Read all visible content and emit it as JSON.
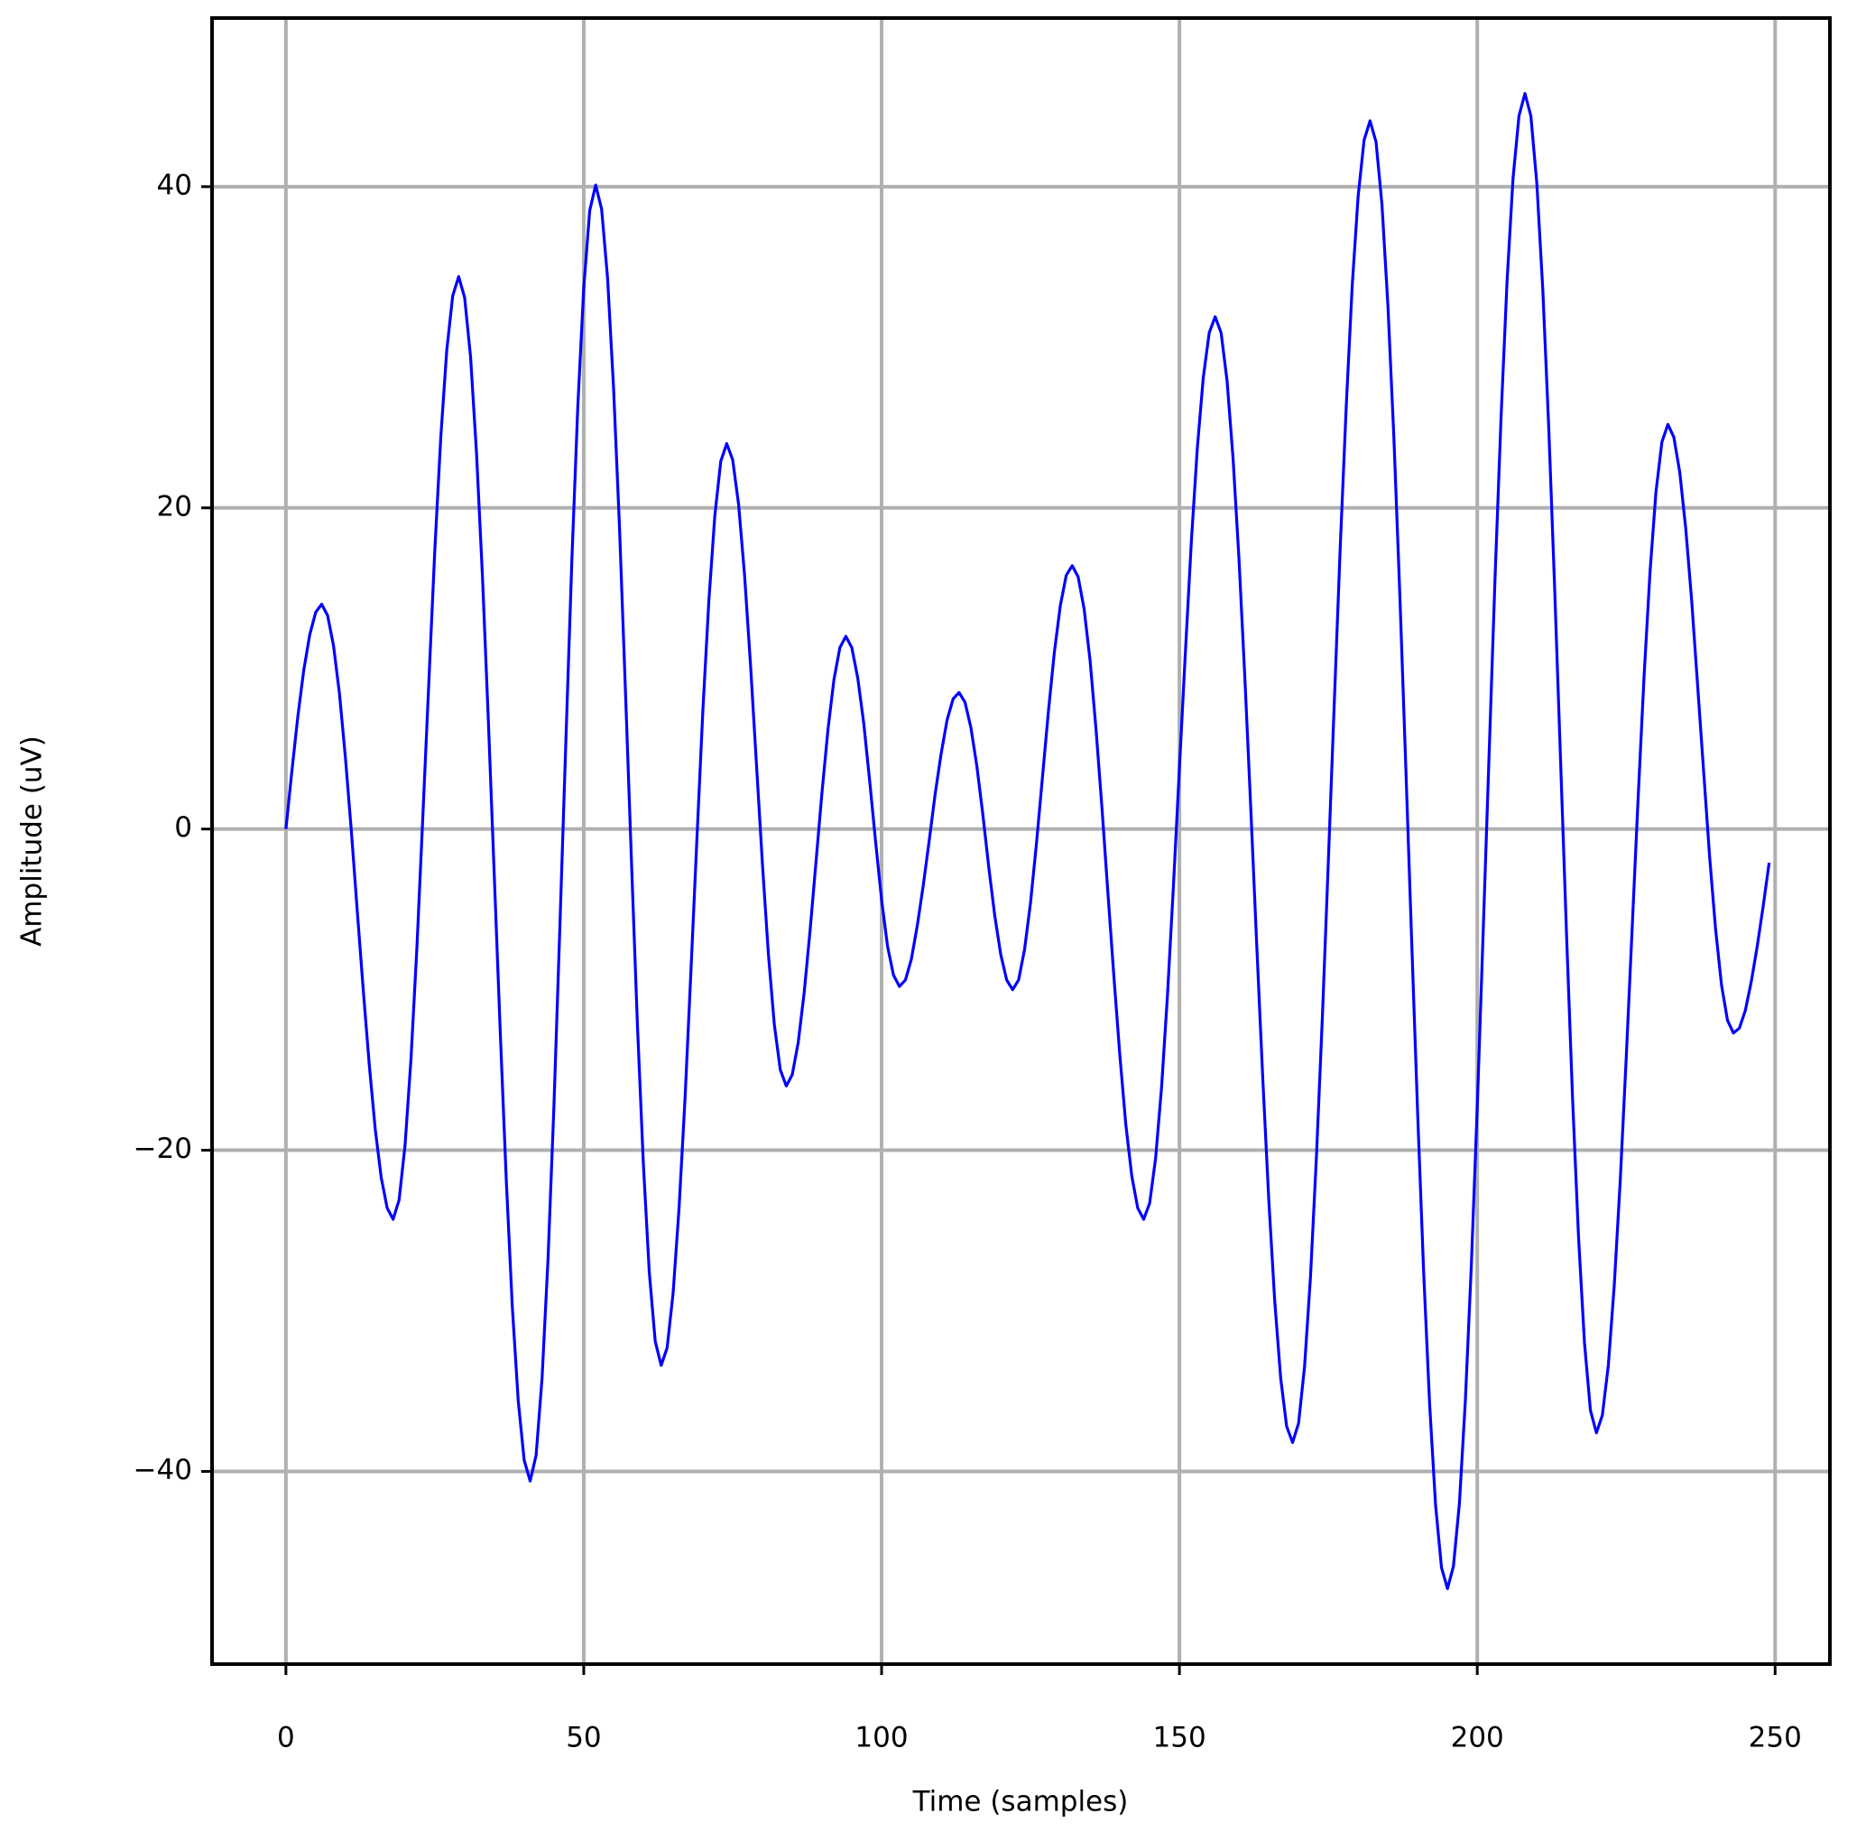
{
  "chart_data": {
    "type": "line",
    "xlabel": "Time (samples)",
    "ylabel": "Amplitude (uV)",
    "x": [
      0,
      1,
      2,
      3,
      4,
      5,
      6,
      7,
      8,
      9,
      10,
      11,
      12,
      13,
      14,
      15,
      16,
      17,
      18,
      19,
      20,
      21,
      22,
      23,
      24,
      25,
      26,
      27,
      28,
      29,
      30,
      31,
      32,
      33,
      34,
      35,
      36,
      37,
      38,
      39,
      40,
      41,
      42,
      43,
      44,
      45,
      46,
      47,
      48,
      49,
      50,
      51,
      52,
      53,
      54,
      55,
      56,
      57,
      58,
      59,
      60,
      61,
      62,
      63,
      64,
      65,
      66,
      67,
      68,
      69,
      70,
      71,
      72,
      73,
      74,
      75,
      76,
      77,
      78,
      79,
      80,
      81,
      82,
      83,
      84,
      85,
      86,
      87,
      88,
      89,
      90,
      91,
      92,
      93,
      94,
      95,
      96,
      97,
      98,
      99,
      100,
      101,
      102,
      103,
      104,
      105,
      106,
      107,
      108,
      109,
      110,
      111,
      112,
      113,
      114,
      115,
      116,
      117,
      118,
      119,
      120,
      121,
      122,
      123,
      124,
      125,
      126,
      127,
      128,
      129,
      130,
      131,
      132,
      133,
      134,
      135,
      136,
      137,
      138,
      139,
      140,
      141,
      142,
      143,
      144,
      145,
      146,
      147,
      148,
      149,
      150,
      151,
      152,
      153,
      154,
      155,
      156,
      157,
      158,
      159,
      160,
      161,
      162,
      163,
      164,
      165,
      166,
      167,
      168,
      169,
      170,
      171,
      172,
      173,
      174,
      175,
      176,
      177,
      178,
      179,
      180,
      181,
      182,
      183,
      184,
      185,
      186,
      187,
      188,
      189,
      190,
      191,
      192,
      193,
      194,
      195,
      196,
      197,
      198,
      199,
      200,
      201,
      202,
      203,
      204,
      205,
      206,
      207,
      208,
      209,
      210,
      211,
      212,
      213,
      214,
      215,
      216,
      217,
      218,
      219,
      220,
      221,
      222,
      223,
      224,
      225,
      226,
      227,
      228,
      229,
      230,
      231,
      232,
      233,
      234,
      235,
      236,
      237,
      238,
      239,
      240,
      241,
      242,
      243,
      244,
      245,
      246,
      247,
      248,
      249
    ],
    "series": [
      {
        "color": "#0000ff",
        "values": [
          0,
          3.6,
          7.0,
          9.9,
          12.1,
          13.5,
          14.0,
          13.3,
          11.4,
          8.4,
          4.4,
          -0.2,
          -5.2,
          -10.1,
          -14.7,
          -18.7,
          -21.7,
          -23.6,
          -24.3,
          -23.1,
          -19.7,
          -14.3,
          -7.3,
          0.9,
          9.2,
          17.4,
          24.4,
          29.8,
          33.2,
          34.4,
          33.1,
          29.4,
          23.4,
          15.7,
          6.6,
          -3.1,
          -12.8,
          -21.9,
          -29.7,
          -35.6,
          -39.3,
          -40.6,
          -39.0,
          -34.2,
          -26.8,
          -17.2,
          -6.0,
          5.5,
          16.7,
          26.3,
          33.7,
          38.5,
          40.1,
          38.6,
          34.3,
          27.5,
          18.8,
          8.6,
          -1.9,
          -12.1,
          -20.8,
          -27.6,
          -31.9,
          -33.4,
          -32.3,
          -28.9,
          -23.6,
          -16.8,
          -8.8,
          -0.6,
          7.4,
          14.2,
          19.5,
          22.9,
          24.0,
          23.0,
          20.2,
          15.8,
          10.2,
          4.0,
          -2.2,
          -7.8,
          -12.2,
          -15.0,
          -16.0,
          -15.3,
          -13.3,
          -10.2,
          -6.3,
          -2.0,
          2.3,
          6.2,
          9.3,
          11.3,
          12.0,
          11.3,
          9.4,
          6.6,
          3.0,
          -0.8,
          -4.4,
          -7.3,
          -9.1,
          -9.8,
          -9.4,
          -8.1,
          -6.0,
          -3.5,
          -0.7,
          2.2,
          4.7,
          6.8,
          8.1,
          8.5,
          7.9,
          6.3,
          3.9,
          0.9,
          -2.4,
          -5.4,
          -7.8,
          -9.4,
          -10.0,
          -9.4,
          -7.5,
          -4.6,
          -0.9,
          3.2,
          7.3,
          11.0,
          13.9,
          15.8,
          16.4,
          15.7,
          13.7,
          10.5,
          6.2,
          1.3,
          -4.0,
          -9.2,
          -14.1,
          -18.4,
          -21.6,
          -23.6,
          -24.3,
          -23.3,
          -20.5,
          -16.1,
          -10.3,
          -3.5,
          3.8,
          11.0,
          17.9,
          23.7,
          28.1,
          30.9,
          31.9,
          30.9,
          27.9,
          23.1,
          16.8,
          9.3,
          1.1,
          -7.4,
          -15.6,
          -23.1,
          -29.4,
          -34.2,
          -37.2,
          -38.2,
          -37.0,
          -33.5,
          -27.9,
          -20.4,
          -11.7,
          -2.0,
          7.9,
          17.6,
          26.3,
          33.8,
          39.4,
          42.9,
          44.1,
          42.8,
          38.9,
          32.6,
          24.4,
          14.6,
          3.9,
          -7.1,
          -17.8,
          -27.6,
          -35.8,
          -42.1,
          -46.0,
          -47.3,
          -45.9,
          -42.0,
          -35.6,
          -27.2,
          -17.3,
          -6.3,
          4.8,
          15.8,
          25.7,
          34.1,
          40.5,
          44.4,
          45.8,
          44.4,
          40.2,
          33.6,
          25.0,
          14.9,
          4.1,
          -6.7,
          -16.8,
          -25.4,
          -32.0,
          -36.2,
          -37.6,
          -36.5,
          -33.4,
          -28.4,
          -21.9,
          -14.3,
          -6.2,
          1.9,
          9.5,
          16.0,
          21.0,
          24.1,
          25.2,
          24.4,
          22.2,
          18.7,
          14.2,
          8.9,
          3.6,
          -1.7,
          -6.2,
          -9.7,
          -11.9,
          -12.7,
          -12.4,
          -11.3,
          -9.5,
          -7.3,
          -4.8,
          -2.1
        ]
      }
    ],
    "xlim": [
      -12.4,
      259.2
    ],
    "ylim": [
      -52,
      50.5
    ],
    "xticks": [
      0,
      50,
      100,
      150,
      200,
      250
    ],
    "yticks": [
      {
        "value": -40,
        "label": "−40"
      },
      {
        "value": -20,
        "label": "−20"
      },
      0,
      20,
      40
    ],
    "grid": true
  }
}
